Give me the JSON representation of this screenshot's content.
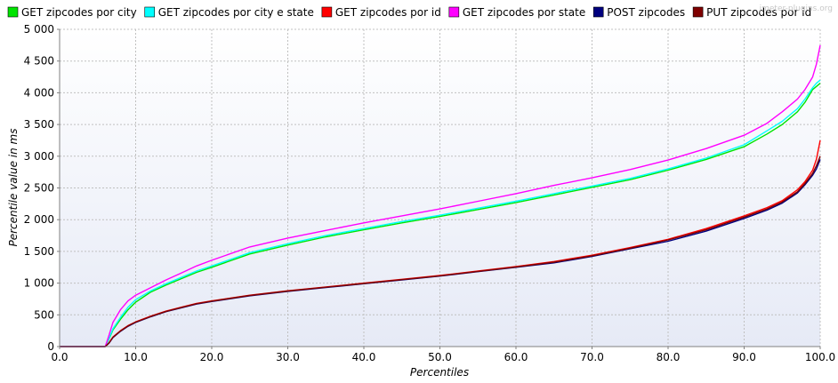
{
  "watermark": "jmeter-plugins.org",
  "chart_data": {
    "type": "line",
    "title": "",
    "xlabel": "Percentiles",
    "ylabel": "Percentile value in ms",
    "xlim": [
      0,
      100
    ],
    "ylim": [
      0,
      5000
    ],
    "x_ticks": [
      "0.0",
      "10.0",
      "20.0",
      "30.0",
      "40.0",
      "50.0",
      "60.0",
      "70.0",
      "80.0",
      "90.0",
      "100.0"
    ],
    "y_ticks": [
      "0",
      "500",
      "1 000",
      "1 500",
      "2 000",
      "2 500",
      "3 000",
      "3 500",
      "4 000",
      "4 500",
      "5 000"
    ],
    "grid": true,
    "legend_position": "top",
    "x": [
      0,
      5,
      6,
      6.5,
      7,
      8,
      9,
      10,
      12,
      14,
      16,
      18,
      20,
      25,
      30,
      35,
      40,
      45,
      50,
      55,
      60,
      65,
      70,
      75,
      80,
      85,
      90,
      93,
      95,
      97,
      98,
      99,
      99.5,
      100
    ],
    "series": [
      {
        "name": "GET zipcodes por city",
        "color": "#00e400",
        "values": [
          0,
          0,
          0,
          120,
          260,
          430,
          580,
          700,
          860,
          970,
          1070,
          1170,
          1250,
          1460,
          1600,
          1730,
          1840,
          1950,
          2050,
          2160,
          2270,
          2390,
          2510,
          2630,
          2780,
          2950,
          3150,
          3350,
          3500,
          3700,
          3850,
          4050,
          4100,
          4150
        ]
      },
      {
        "name": "GET zipcodes por city e state",
        "color": "#00ffff",
        "values": [
          0,
          0,
          0,
          130,
          280,
          460,
          620,
          740,
          880,
          990,
          1090,
          1190,
          1270,
          1480,
          1620,
          1750,
          1860,
          1970,
          2070,
          2180,
          2290,
          2410,
          2530,
          2650,
          2800,
          2970,
          3180,
          3400,
          3550,
          3750,
          3900,
          4080,
          4150,
          4200
        ]
      },
      {
        "name": "GET zipcodes por id",
        "color": "#ff0000",
        "values": [
          0,
          0,
          0,
          60,
          150,
          250,
          330,
          390,
          480,
          560,
          620,
          680,
          720,
          810,
          880,
          940,
          1000,
          1060,
          1120,
          1190,
          1260,
          1340,
          1440,
          1560,
          1690,
          1860,
          2060,
          2190,
          2300,
          2470,
          2600,
          2780,
          2950,
          3250
        ]
      },
      {
        "name": "GET zipcodes por state",
        "color": "#ff00ff",
        "values": [
          0,
          0,
          0,
          180,
          380,
          580,
          720,
          810,
          930,
          1050,
          1160,
          1270,
          1360,
          1570,
          1710,
          1830,
          1950,
          2060,
          2170,
          2290,
          2410,
          2540,
          2660,
          2790,
          2940,
          3120,
          3330,
          3520,
          3700,
          3900,
          4050,
          4250,
          4450,
          4750
        ]
      },
      {
        "name": "POST zipcodes",
        "color": "#00007f",
        "values": [
          0,
          0,
          0,
          55,
          140,
          240,
          320,
          380,
          470,
          550,
          610,
          670,
          710,
          800,
          870,
          930,
          990,
          1050,
          1110,
          1180,
          1250,
          1320,
          1420,
          1540,
          1660,
          1820,
          2020,
          2150,
          2260,
          2420,
          2550,
          2700,
          2800,
          2950
        ]
      },
      {
        "name": "PUT zipcodes por id",
        "color": "#7f0000",
        "values": [
          0,
          0,
          0,
          58,
          145,
          245,
          325,
          385,
          475,
          555,
          615,
          675,
          715,
          805,
          875,
          935,
          995,
          1055,
          1115,
          1185,
          1255,
          1330,
          1430,
          1550,
          1680,
          1840,
          2040,
          2170,
          2280,
          2440,
          2570,
          2730,
          2850,
          3000
        ]
      }
    ]
  }
}
